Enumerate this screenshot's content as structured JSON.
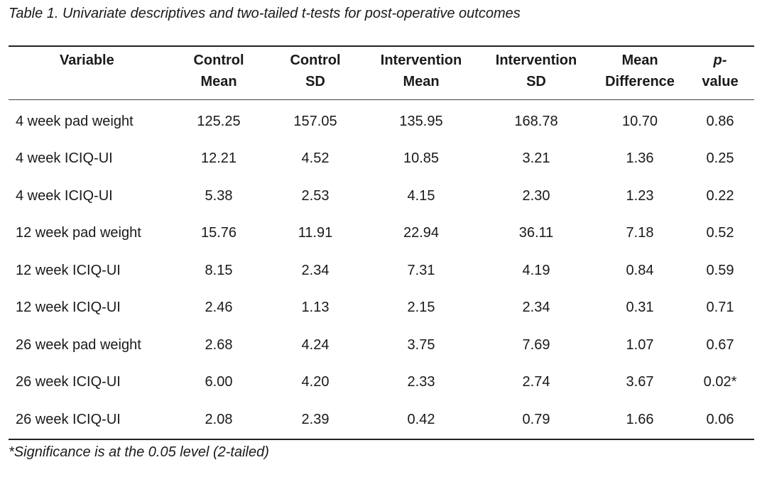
{
  "caption": "Table 1. Univariate descriptives and two-tailed t-tests for post-operative outcomes",
  "headers": {
    "variable": "Variable",
    "control_mean": [
      "Control",
      "Mean"
    ],
    "control_sd": [
      "Control",
      "SD"
    ],
    "intervention_mean": [
      "Intervention",
      "Mean"
    ],
    "intervention_sd": [
      "Intervention",
      "SD"
    ],
    "mean_difference": [
      "Mean",
      "Difference"
    ],
    "p_value": [
      "p-",
      "value"
    ]
  },
  "rows": [
    {
      "variable": "4 week pad weight",
      "control_mean": "125.25",
      "control_sd": "157.05",
      "intervention_mean": "135.95",
      "intervention_sd": "168.78",
      "mean_difference": "10.70",
      "p_value": "0.86"
    },
    {
      "variable": "4 week ICIQ-UI",
      "control_mean": "12.21",
      "control_sd": "4.52",
      "intervention_mean": "10.85",
      "intervention_sd": "3.21",
      "mean_difference": "1.36",
      "p_value": "0.25"
    },
    {
      "variable": "4 week ICIQ-UI",
      "control_mean": "5.38",
      "control_sd": "2.53",
      "intervention_mean": "4.15",
      "intervention_sd": "2.30",
      "mean_difference": "1.23",
      "p_value": "0.22"
    },
    {
      "variable": "12 week pad weight",
      "control_mean": "15.76",
      "control_sd": "11.91",
      "intervention_mean": "22.94",
      "intervention_sd": "36.11",
      "mean_difference": "7.18",
      "p_value": "0.52"
    },
    {
      "variable": "12 week ICIQ-UI",
      "control_mean": "8.15",
      "control_sd": "2.34",
      "intervention_mean": "7.31",
      "intervention_sd": "4.19",
      "mean_difference": "0.84",
      "p_value": "0.59"
    },
    {
      "variable": "12 week ICIQ-UI",
      "control_mean": "2.46",
      "control_sd": "1.13",
      "intervention_mean": "2.15",
      "intervention_sd": "2.34",
      "mean_difference": "0.31",
      "p_value": "0.71"
    },
    {
      "variable": "26 week pad weight",
      "control_mean": "2.68",
      "control_sd": "4.24",
      "intervention_mean": "3.75",
      "intervention_sd": "7.69",
      "mean_difference": "1.07",
      "p_value": "0.67"
    },
    {
      "variable": "26 week ICIQ-UI",
      "control_mean": "6.00",
      "control_sd": "4.20",
      "intervention_mean": "2.33",
      "intervention_sd": "2.74",
      "mean_difference": "3.67",
      "p_value": "0.02*"
    },
    {
      "variable": "26 week ICIQ-UI",
      "control_mean": "2.08",
      "control_sd": "2.39",
      "intervention_mean": "0.42",
      "intervention_sd": "0.79",
      "mean_difference": "1.66",
      "p_value": "0.06"
    }
  ],
  "footnote": "*Significance is at the 0.05 level (2-tailed)"
}
